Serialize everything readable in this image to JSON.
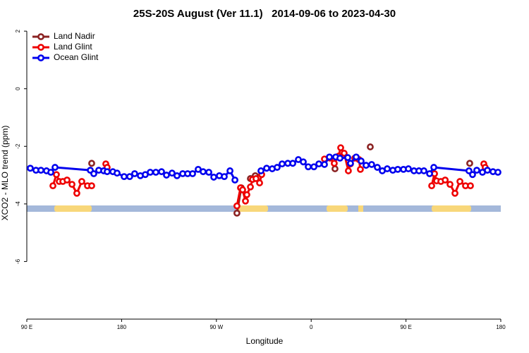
{
  "chart_data": {
    "type": "line",
    "title": "25S-20S August (Ver 11.1)   2014-09-06 to 2023-04-30",
    "x_label": "Longitude",
    "y_label": "XCO2 - MLO trend (ppm)",
    "xlim": [
      90,
      540
    ],
    "ylim": [
      -8,
      2.15
    ],
    "xticks": [
      {
        "value": 90,
        "label": "90 E"
      },
      180,
      {
        "value": 270,
        "label": "90 W"
      },
      {
        "value": 360,
        "label": "0"
      },
      {
        "value": 450,
        "label": "90 E"
      },
      {
        "value": 540,
        "label": "180"
      }
    ],
    "yticks": [
      2,
      0,
      -2,
      -4,
      -6
    ],
    "legend": "top-left",
    "series": [
      {
        "name": "Land Nadir",
        "color": "#8b2323",
        "x": [
          151.6,
          null,
          289.5,
          293.6,
          null,
          302.3,
          306.9,
          null,
          382.6,
          null,
          416.1,
          null,
          510.5
        ],
        "values": [
          -2.59,
          null,
          -4.32,
          -3.44,
          null,
          -3.12,
          -3.02,
          null,
          -2.78,
          null,
          -2.02,
          null,
          -2.59
        ]
      },
      {
        "name": "Land Glint",
        "color": "#ee0000",
        "x": [
          114.8,
          118.1,
          120.8,
          124.2,
          128.2,
          132.9,
          137.5,
          142.2,
          147.6,
          151.6,
          null,
          165.0,
          166.3,
          null,
          289.5,
          292.9,
          294.9,
          297.6,
          298.9,
          302.3,
          304.3,
          307.6,
          311.0,
          313.0,
          null,
          372.6,
          377.9,
          381.9,
          386.0,
          388.0,
          391.3,
          395.3,
          397.3,
          401.4,
          405.4,
          406.7,
          null,
          474.4,
          477.1,
          479.1,
          483.1,
          487.2,
          491.8,
          496.5,
          501.2,
          506.5,
          511.2,
          null,
          523.9,
          525.2
        ],
        "values": [
          -3.37,
          -2.98,
          -3.22,
          -3.22,
          -3.17,
          -3.32,
          -3.63,
          -3.22,
          -3.37,
          -3.37,
          null,
          -2.61,
          -2.73,
          null,
          -4.07,
          -3.44,
          -3.51,
          -3.9,
          -3.68,
          -3.41,
          -3.15,
          -3.12,
          -3.27,
          -2.98,
          null,
          -2.44,
          -2.41,
          -2.59,
          -2.34,
          -2.05,
          -2.24,
          -2.85,
          -2.61,
          -2.41,
          -2.46,
          -2.8,
          null,
          -3.37,
          -2.95,
          -3.2,
          -3.22,
          -3.17,
          -3.32,
          -3.63,
          -3.22,
          -3.37,
          -3.37,
          null,
          -2.61,
          -2.73
        ]
      },
      {
        "name": "Ocean Glint",
        "color": "#0000ee",
        "x": [
          93.3,
          98.7,
          103.4,
          108.7,
          112.8,
          116.8,
          150.3,
          153.6,
          158.3,
          163.0,
          166.3,
          171.7,
          175.7,
          182.4,
          187.7,
          192.4,
          197.8,
          202.5,
          207.2,
          212.5,
          217.9,
          222.6,
          227.9,
          232.6,
          238.0,
          242.7,
          247.4,
          252.7,
          257.4,
          262.8,
          267.5,
          272.8,
          277.5,
          282.9,
          287.6,
          null,
          312.3,
          317.7,
          323.0,
          327.7,
          332.4,
          337.8,
          342.5,
          347.8,
          352.5,
          357.2,
          362.6,
          367.3,
          372.6,
          377.3,
          383.3,
          387.3,
          394.7,
          397.3,
          402.7,
          407.4,
          412.1,
          417.4,
          422.8,
          427.5,
          432.2,
          437.5,
          442.2,
          447.6,
          452.3,
          457.6,
          462.3,
          467.0,
          472.4,
          476.4,
          509.8,
          513.2,
          517.2,
          522.6,
          527.3,
          532.6,
          537.3
        ],
        "values": [
          -2.76,
          -2.83,
          -2.83,
          -2.85,
          -2.9,
          -2.73,
          -2.83,
          -2.95,
          -2.83,
          -2.85,
          -2.88,
          -2.88,
          -2.93,
          -3.05,
          -3.05,
          -2.95,
          -3.02,
          -2.98,
          -2.9,
          -2.9,
          -2.88,
          -3.0,
          -2.93,
          -3.02,
          -2.95,
          -2.95,
          -2.95,
          -2.8,
          -2.88,
          -2.9,
          -3.07,
          -3.02,
          -3.05,
          -2.85,
          -3.17,
          null,
          -2.85,
          -2.76,
          -2.78,
          -2.73,
          -2.61,
          -2.59,
          -2.59,
          -2.46,
          -2.54,
          -2.71,
          -2.71,
          -2.61,
          -2.63,
          -2.37,
          -2.37,
          -2.41,
          -2.39,
          -2.59,
          -2.37,
          -2.51,
          -2.66,
          -2.63,
          -2.73,
          -2.85,
          -2.78,
          -2.83,
          -2.8,
          -2.8,
          -2.78,
          -2.85,
          -2.85,
          -2.85,
          -2.95,
          -2.73,
          -2.85,
          -2.98,
          -2.83,
          -2.9,
          -2.83,
          -2.88,
          -2.9
        ]
      }
    ]
  }
}
